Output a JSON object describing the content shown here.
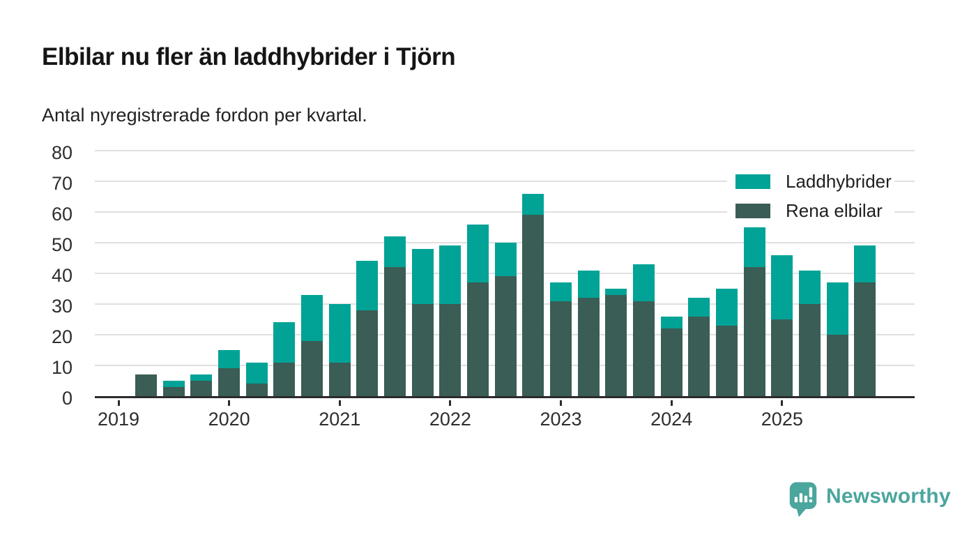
{
  "header": {
    "title": "Elbilar nu fler än laddhybrider i Tjörn",
    "subtitle": "Antal nyregistrerade fordon per kvartal."
  },
  "legend": {
    "items": [
      {
        "label": "Laddhybrider",
        "color": "#00a396"
      },
      {
        "label": "Rena elbilar",
        "color": "#3a5d55"
      }
    ]
  },
  "footer": {
    "brand": "Newsworthy",
    "logo_icon": "newsworthy-speech-bubble-chart-icon",
    "brand_color": "#4ba69d"
  },
  "colors": {
    "laddhybrider": "#00a396",
    "rena_elbilar": "#3a5d55",
    "gridline": "#e0e0e0",
    "axis": "#2b2b2b",
    "background": "#ffffff"
  },
  "chart_data": {
    "type": "bar",
    "stacked": true,
    "title": "Elbilar nu fler än laddhybrider i Tjörn",
    "subtitle": "Antal nyregistrerade fordon per kvartal.",
    "xlabel": "",
    "ylabel": "",
    "ylim": [
      0,
      80
    ],
    "yticks": [
      0,
      10,
      20,
      30,
      40,
      50,
      60,
      70,
      80
    ],
    "xticks": [
      "2019",
      "2020",
      "2021",
      "2022",
      "2023",
      "2024",
      "2025"
    ],
    "grid": true,
    "legend_position": "top-right",
    "categories": [
      "2019 Q2",
      "2019 Q3",
      "2019 Q4",
      "2020 Q1",
      "2020 Q2",
      "2020 Q3",
      "2020 Q4",
      "2021 Q1",
      "2021 Q2",
      "2021 Q3",
      "2021 Q4",
      "2022 Q1",
      "2022 Q2",
      "2022 Q3",
      "2022 Q4",
      "2023 Q1",
      "2023 Q2",
      "2023 Q3",
      "2023 Q4",
      "2024 Q1",
      "2024 Q2",
      "2024 Q3",
      "2024 Q4",
      "2025 Q1",
      "2025 Q2",
      "2025 Q3",
      "2025 Q4"
    ],
    "series": [
      {
        "name": "Rena elbilar",
        "color": "#3a5d55",
        "values": [
          7,
          3,
          5,
          9,
          4,
          11,
          18,
          11,
          28,
          42,
          30,
          30,
          37,
          39,
          59,
          31,
          32,
          33,
          31,
          22,
          26,
          23,
          42,
          25,
          30,
          20,
          37
        ]
      },
      {
        "name": "Laddhybrider",
        "color": "#00a396",
        "values": [
          0,
          2,
          2,
          6,
          7,
          13,
          15,
          19,
          16,
          10,
          18,
          19,
          19,
          11,
          7,
          6,
          9,
          2,
          12,
          4,
          6,
          12,
          13,
          21,
          11,
          17,
          12
        ]
      }
    ],
    "totals": [
      7,
      5,
      7,
      15,
      11,
      24,
      33,
      30,
      44,
      52,
      48,
      49,
      56,
      50,
      66,
      37,
      41,
      35,
      43,
      26,
      32,
      35,
      55,
      46,
      41,
      37,
      49
    ]
  }
}
